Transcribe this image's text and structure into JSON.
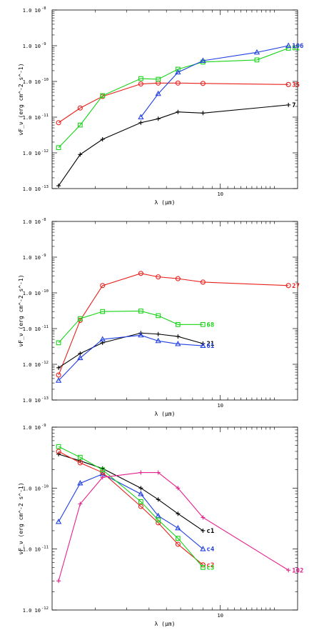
{
  "chart_data": [
    {
      "type": "line",
      "xlabel": "λ (μm)",
      "ylabel": "νF_ν (erg cm^-2 s^-1)",
      "xscale": "log",
      "yscale": "log",
      "xlim": [
        1.15,
        27
      ],
      "ylim": [
        1e-13,
        1e-08
      ],
      "yticks": [
        {
          "value": 1e-13,
          "label": "1.0 10"
        },
        {
          "value": 1e-12,
          "label": "1.0 10"
        },
        {
          "value": 1e-11,
          "label": "1.0 10"
        },
        {
          "value": 1e-10,
          "label": "1.0 10"
        },
        {
          "value": 1e-09,
          "label": "1.0 10"
        },
        {
          "value": 1e-08,
          "label": "1.0 10"
        }
      ],
      "yticks_exp": [
        "-13",
        "-12",
        "-11",
        "-10",
        "-9",
        "-8"
      ],
      "xticks": [
        {
          "value": 10,
          "label": "10"
        }
      ],
      "series": [
        {
          "name": "7",
          "color": "#000000",
          "marker": "plus",
          "x": [
            1.25,
            1.65,
            2.2,
            3.6,
            4.5,
            5.8,
            8.0,
            24.0
          ],
          "y": [
            1.2e-13,
            9e-13,
            2.4e-12,
            7e-12,
            9e-12,
            1.4e-11,
            1.3e-11,
            2.2e-11
          ]
        },
        {
          "name": "35",
          "color": "#e8201c",
          "marker": "circle",
          "x": [
            1.25,
            1.65,
            2.2,
            3.6,
            4.5,
            5.8,
            8.0,
            24.0
          ],
          "y": [
            7e-12,
            1.8e-11,
            3.8e-11,
            8.5e-11,
            9e-11,
            9e-11,
            8.8e-11,
            8.2e-11
          ]
        },
        {
          "name": "81",
          "color": "#18d418",
          "marker": "square",
          "x": [
            1.25,
            1.65,
            2.2,
            3.6,
            4.5,
            5.8,
            8.0,
            16.0,
            24.0
          ],
          "y": [
            1.4e-12,
            6e-12,
            4e-11,
            1.2e-10,
            1.15e-10,
            2.2e-10,
            3.5e-10,
            4e-10,
            8.5e-10
          ]
        },
        {
          "name": "106",
          "color": "#1f3fe0",
          "marker": "triangle",
          "x": [
            3.6,
            4.5,
            5.8,
            8.0,
            16.0,
            24.0
          ],
          "y": [
            1e-11,
            4.5e-11,
            1.8e-10,
            3.8e-10,
            6.5e-10,
            1e-09
          ]
        }
      ]
    },
    {
      "type": "line",
      "xlabel": "λ (μm)",
      "ylabel": "νF_ν (erg cm^-2 s^-1)",
      "xscale": "log",
      "yscale": "log",
      "xlim": [
        1.15,
        27
      ],
      "ylim": [
        1e-13,
        1e-08
      ],
      "yticks": [
        {
          "value": 1e-13,
          "label": "1.0 10"
        },
        {
          "value": 1e-12,
          "label": "1.0 10"
        },
        {
          "value": 1e-11,
          "label": "1.0 10"
        },
        {
          "value": 1e-10,
          "label": "1.0 10"
        },
        {
          "value": 1e-09,
          "label": "1.0 10"
        },
        {
          "value": 1e-08,
          "label": "1.0 10"
        }
      ],
      "yticks_exp": [
        "-13",
        "-12",
        "-11",
        "-10",
        "-9",
        "-8"
      ],
      "xticks": [
        {
          "value": 10,
          "label": "10"
        }
      ],
      "series": [
        {
          "name": "27",
          "color": "#e8201c",
          "marker": "circle",
          "x": [
            1.25,
            1.65,
            2.2,
            3.6,
            4.5,
            5.8,
            8.0,
            24.0
          ],
          "y": [
            5e-13,
            1.7e-11,
            1.6e-10,
            3.5e-10,
            2.8e-10,
            2.5e-10,
            2e-10,
            1.6e-10
          ]
        },
        {
          "name": "68",
          "color": "#18d418",
          "marker": "square",
          "x": [
            1.25,
            1.65,
            2.2,
            3.6,
            4.5,
            5.8,
            8.0
          ],
          "y": [
            4e-12,
            1.9e-11,
            3e-11,
            3.1e-11,
            2.3e-11,
            1.3e-11,
            1.3e-11
          ]
        },
        {
          "name": "21",
          "color": "#000000",
          "marker": "plus",
          "x": [
            1.25,
            1.65,
            2.2,
            3.6,
            4.5,
            5.8,
            8.0
          ],
          "y": [
            8e-13,
            2e-12,
            4e-12,
            7.5e-12,
            7e-12,
            6e-12,
            3.8e-12
          ]
        },
        {
          "name": "61",
          "color": "#1f3fe0",
          "marker": "triangle",
          "x": [
            1.25,
            1.65,
            2.2,
            3.6,
            4.5,
            5.8,
            8.0
          ],
          "y": [
            3.5e-13,
            1.5e-12,
            5e-12,
            6.5e-12,
            4.5e-12,
            3.7e-12,
            3.3e-12
          ]
        }
      ]
    },
    {
      "type": "line",
      "xlabel": "λ (μm)",
      "ylabel": "νF_ν (erg cm^-2 s^-1)",
      "xscale": "log",
      "yscale": "log",
      "xlim": [
        1.15,
        27
      ],
      "ylim": [
        1e-12,
        1e-09
      ],
      "yticks": [
        {
          "value": 1e-12,
          "label": "1.0 10"
        },
        {
          "value": 1e-11,
          "label": "1.0 10"
        },
        {
          "value": 1e-10,
          "label": "1.0 10"
        },
        {
          "value": 1e-09,
          "label": "1.0 10"
        }
      ],
      "yticks_exp": [
        "-12",
        "-11",
        "-10",
        "-9"
      ],
      "xticks": [
        {
          "value": 10,
          "label": "10"
        }
      ],
      "series": [
        {
          "name": "c1",
          "color": "#000000",
          "marker": "plus",
          "x": [
            1.25,
            1.65,
            2.2,
            3.6,
            4.5,
            5.8,
            8.0
          ],
          "y": [
            3.6e-10,
            2.8e-10,
            2.1e-10,
            1e-10,
            6.5e-11,
            3.8e-11,
            2e-11
          ]
        },
        {
          "name": "c4",
          "color": "#1f3fe0",
          "marker": "triangle",
          "x": [
            1.25,
            1.65,
            2.2,
            3.6,
            4.5,
            5.8,
            8.0
          ],
          "y": [
            2.8e-11,
            1.2e-10,
            1.7e-10,
            8e-11,
            3.5e-11,
            2.2e-11,
            1e-11
          ]
        },
        {
          "name": "c2",
          "color": "#e8201c",
          "marker": "circle",
          "x": [
            1.25,
            1.65,
            2.2,
            3.6,
            4.5,
            5.8,
            8.0
          ],
          "y": [
            4e-10,
            2.6e-10,
            1.8e-10,
            5e-11,
            2.7e-11,
            1.2e-11,
            5.5e-12
          ]
        },
        {
          "name": "c3",
          "color": "#18d418",
          "marker": "square",
          "x": [
            1.25,
            1.65,
            2.2,
            3.6,
            4.5,
            5.8,
            8.0
          ],
          "y": [
            4.8e-10,
            3.2e-10,
            2e-10,
            6e-11,
            3e-11,
            1.5e-11,
            5e-12
          ]
        },
        {
          "name": "102",
          "color": "#e8208c",
          "marker": "plus",
          "x": [
            1.25,
            1.65,
            2.2,
            3.6,
            4.5,
            5.8,
            8.0,
            24.0
          ],
          "y": [
            3e-12,
            5.5e-11,
            1.5e-10,
            1.8e-10,
            1.8e-10,
            1e-10,
            3.3e-11,
            4.5e-12
          ]
        }
      ]
    }
  ]
}
